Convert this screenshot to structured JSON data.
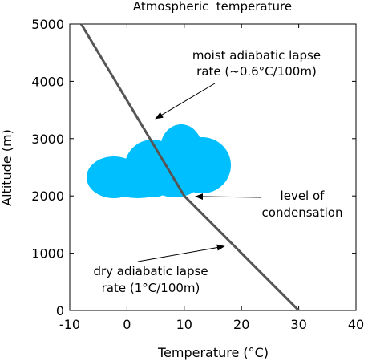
{
  "chart_data": {
    "type": "line",
    "title": "Atmospheric  temperature",
    "xlabel": "Temperature (°C)",
    "ylabel": "Altitude (m)",
    "xlim": [
      -10,
      40
    ],
    "ylim": [
      0,
      5000
    ],
    "x_ticks": [
      -10,
      0,
      10,
      20,
      30,
      40
    ],
    "y_ticks": [
      0,
      1000,
      2000,
      3000,
      4000,
      5000
    ],
    "grid": false,
    "series": [
      {
        "color": "#555555",
        "points": [
          {
            "x": 30,
            "y": 0
          },
          {
            "x": 10,
            "y": 2000
          },
          {
            "x": -8,
            "y": 5000
          }
        ]
      }
    ],
    "annotations": [
      {
        "lines": [
          "moist adiabatic lapse",
          "rate (~0.6°C/100m)"
        ],
        "target": {
          "x": 5,
          "y": 3350
        }
      },
      {
        "lines": [
          "level of",
          "condensation"
        ],
        "target": {
          "x": 12,
          "y": 1990
        }
      },
      {
        "lines": [
          "dry adiabatic lapse",
          "rate (1°C/100m)"
        ],
        "target": {
          "x": 17,
          "y": 1120
        }
      }
    ],
    "cloud_color": "#00bfff"
  }
}
